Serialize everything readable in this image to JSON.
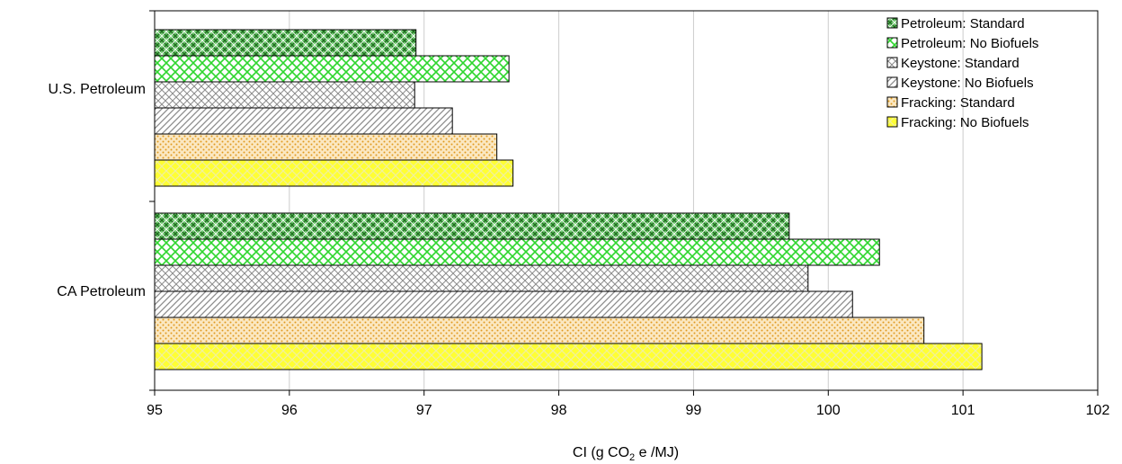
{
  "chart_data": {
    "type": "bar",
    "orientation": "horizontal",
    "categories": [
      "U.S. Petroleum",
      "CA Petroleum"
    ],
    "series": [
      {
        "name": "Petroleum: Standard",
        "values": [
          96.94,
          99.71
        ],
        "color": "#2e8b2e",
        "pattern": "weave"
      },
      {
        "name": "Petroleum: No Biofuels",
        "values": [
          97.63,
          100.38
        ],
        "color": "#3ee03e",
        "pattern": "weave"
      },
      {
        "name": "Keystone: Standard",
        "values": [
          96.93,
          99.85
        ],
        "color": "#8c8c8c",
        "pattern": "crosshatch"
      },
      {
        "name": "Keystone: No Biofuels",
        "values": [
          97.21,
          100.18
        ],
        "color": "#8c8c8c",
        "pattern": "diagonal"
      },
      {
        "name": "Fracking: Standard",
        "values": [
          97.54,
          100.71
        ],
        "color": "#e0a030",
        "pattern": "dots"
      },
      {
        "name": "Fracking: No Biofuels",
        "values": [
          97.66,
          101.14
        ],
        "color": "#ffff33",
        "pattern": "weave-yellow"
      }
    ],
    "xlabel": {
      "main": "CI (g CO",
      "sub": "2",
      "tail": " e /MJ)"
    },
    "xlim": [
      95,
      102
    ],
    "xticks": [
      "95",
      "96",
      "97",
      "98",
      "99",
      "100",
      "101",
      "102"
    ],
    "grid": "vertical",
    "legend_position": "top-right"
  }
}
